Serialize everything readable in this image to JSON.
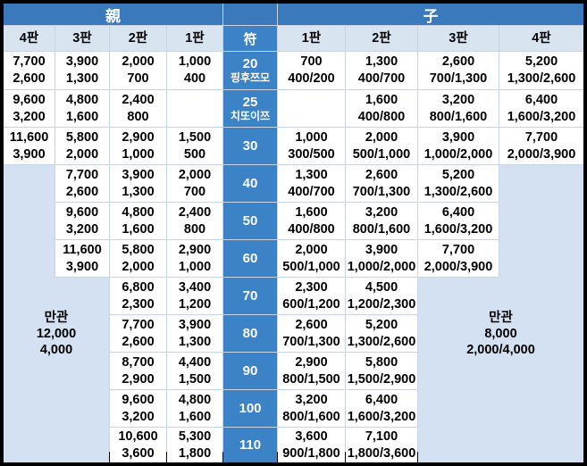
{
  "colors": {
    "band_blue": "#3A7ABC",
    "fu_blue": "#3C82C6",
    "light_blue_header": "#D9E4F1",
    "mangan_blue": "#D3E1F2",
    "gridline": "#C9D3E1",
    "cell_white": "#FFFFFF",
    "frame_black": "#000000"
  },
  "chart_data": {
    "type": "table",
    "header_band": {
      "parent": "親",
      "child": "子"
    },
    "fu_header": "符",
    "parent_columns": [
      "4판",
      "3판",
      "2판",
      "1판"
    ],
    "child_columns": [
      "1판",
      "2판",
      "3판",
      "4판"
    ],
    "rows": [
      {
        "fu": "20",
        "fu_sub": "핑후쯔모",
        "parent": [
          [
            "7,700",
            "2,600"
          ],
          [
            "3,900",
            "1,300"
          ],
          [
            "2,000",
            "700"
          ],
          [
            "1,000",
            "400"
          ]
        ],
        "child": [
          [
            "700",
            "400/200"
          ],
          [
            "1,300",
            "400/700"
          ],
          [
            "2,600",
            "700/1,300"
          ],
          [
            "5,200",
            "1,300/2,600"
          ]
        ]
      },
      {
        "fu": "25",
        "fu_sub": "치또이쯔",
        "parent": [
          [
            "9,600",
            "3,200"
          ],
          [
            "4,800",
            "1,600"
          ],
          [
            "2,400",
            "800"
          ],
          []
        ],
        "child": [
          [],
          [
            "1,600",
            "400/800"
          ],
          [
            "3,200",
            "800/1,600"
          ],
          [
            "6,400",
            "1,600/3,200"
          ]
        ]
      },
      {
        "fu": "30",
        "parent": [
          [
            "11,600",
            "3,900"
          ],
          [
            "5,800",
            "2,000"
          ],
          [
            "2,900",
            "1,000"
          ],
          [
            "1,500",
            "500"
          ]
        ],
        "child": [
          [
            "1,000",
            "300/500"
          ],
          [
            "2,000",
            "500/1,000"
          ],
          [
            "3,900",
            "1,000/2,000"
          ],
          [
            "7,700",
            "2,000/3,900"
          ]
        ]
      },
      {
        "fu": "40",
        "parent": [
          null,
          [
            "7,700",
            "2,600"
          ],
          [
            "3,900",
            "1,300"
          ],
          [
            "2,000",
            "700"
          ]
        ],
        "child": [
          [
            "1,300",
            "400/700"
          ],
          [
            "2,600",
            "700/1,300"
          ],
          [
            "5,200",
            "1,300/2,600"
          ],
          null
        ]
      },
      {
        "fu": "50",
        "parent": [
          null,
          [
            "9,600",
            "3,200"
          ],
          [
            "4,800",
            "1,600"
          ],
          [
            "2,400",
            "800"
          ]
        ],
        "child": [
          [
            "1,600",
            "400/800"
          ],
          [
            "3,200",
            "800/1,600"
          ],
          [
            "6,400",
            "1,600/3,200"
          ],
          null
        ]
      },
      {
        "fu": "60",
        "parent": [
          null,
          [
            "11,600",
            "3,900"
          ],
          [
            "5,800",
            "2,000"
          ],
          [
            "2,900",
            "1,000"
          ]
        ],
        "child": [
          [
            "2,000",
            "500/1,000"
          ],
          [
            "3,900",
            "1,000/2,000"
          ],
          [
            "7,700",
            "2,000/3,900"
          ],
          null
        ]
      },
      {
        "fu": "70",
        "parent": [
          null,
          null,
          [
            "6,800",
            "2,300"
          ],
          [
            "3,400",
            "1,200"
          ]
        ],
        "child": [
          [
            "2,300",
            "600/1,200"
          ],
          [
            "4,500",
            "1,200/2,300"
          ],
          null,
          null
        ]
      },
      {
        "fu": "80",
        "parent": [
          null,
          null,
          [
            "7,700",
            "2,600"
          ],
          [
            "3,900",
            "1,300"
          ]
        ],
        "child": [
          [
            "2,600",
            "700/1,300"
          ],
          [
            "5,200",
            "1,300/2,600"
          ],
          null,
          null
        ]
      },
      {
        "fu": "90",
        "parent": [
          null,
          null,
          [
            "8,700",
            "2,900"
          ],
          [
            "4,400",
            "1,500"
          ]
        ],
        "child": [
          [
            "2,900",
            "800/1,500"
          ],
          [
            "5,800",
            "1,500/2,900"
          ],
          null,
          null
        ]
      },
      {
        "fu": "100",
        "parent": [
          null,
          null,
          [
            "9,600",
            "3,200"
          ],
          [
            "4,800",
            "1,600"
          ]
        ],
        "child": [
          [
            "3,200",
            "800/1,600"
          ],
          [
            "6,400",
            "1,600/3,200"
          ],
          null,
          null
        ]
      },
      {
        "fu": "110",
        "parent": [
          null,
          null,
          [
            "10,600",
            "3,600"
          ],
          [
            "5,300",
            "1,800"
          ]
        ],
        "child": [
          [
            "3,600",
            "900/1,800"
          ],
          [
            "7,100",
            "1,800/3,600"
          ],
          null,
          null
        ]
      }
    ],
    "parent_mangan": {
      "label": "만관",
      "lines": [
        "12,000",
        "4,000"
      ]
    },
    "child_mangan": {
      "label": "만관",
      "lines": [
        "8,000",
        "2,000/4,000"
      ]
    }
  }
}
